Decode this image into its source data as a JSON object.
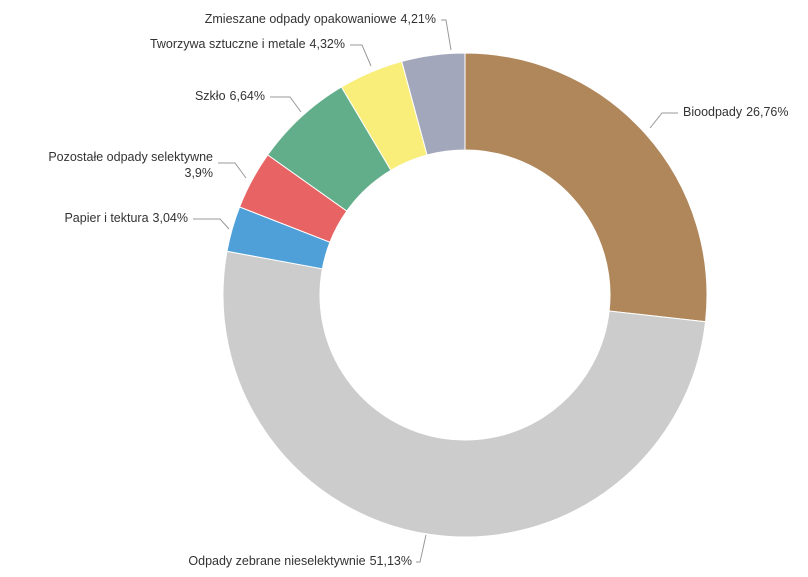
{
  "chart_data": {
    "type": "donut",
    "categories": [
      "Bioodpady",
      "Odpady zebrane nieselektywnie",
      "Papier i tektura",
      "Pozostałe odpady selektywne",
      "Szkło",
      "Tworzywa sztuczne i metale",
      "Zmieszane odpady opakowaniowe"
    ],
    "values": [
      26.76,
      51.13,
      3.04,
      3.9,
      6.64,
      4.32,
      4.21
    ],
    "value_labels": [
      "26,76%",
      "51,13%",
      "3,04%",
      "3,9%",
      "6,64%",
      "4,32%",
      "4,21%"
    ],
    "colors": [
      "#b0875b",
      "#cccccc",
      "#4fa0d8",
      "#e86464",
      "#63ae8a",
      "#f9ee7a",
      "#a3a7bb"
    ]
  }
}
